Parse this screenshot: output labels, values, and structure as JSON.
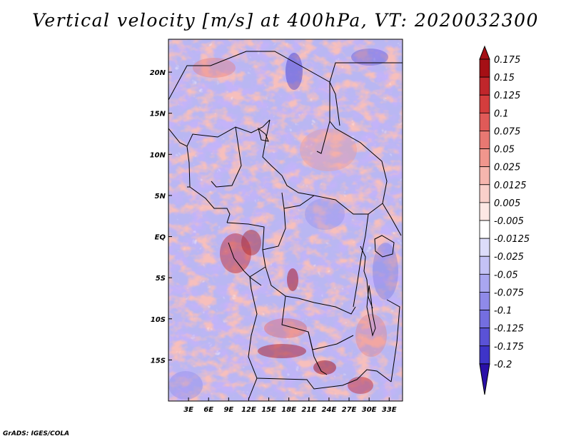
{
  "title": "Vertical velocity [m/s] at 400hPa, VT: 2020032300",
  "credit": "GrADS: IGES/COLA",
  "map": {
    "lon_range": [
      0,
      35
    ],
    "lat_range": [
      -20,
      24
    ],
    "lat_ticks": [
      {
        "value": 20,
        "label": "20N"
      },
      {
        "value": 15,
        "label": "15N"
      },
      {
        "value": 10,
        "label": "10N"
      },
      {
        "value": 5,
        "label": "5N"
      },
      {
        "value": 0,
        "label": "EQ"
      },
      {
        "value": -5,
        "label": "5S"
      },
      {
        "value": -10,
        "label": "10S"
      },
      {
        "value": -15,
        "label": "15S"
      }
    ],
    "lon_ticks": [
      {
        "value": 3,
        "label": "3E"
      },
      {
        "value": 6,
        "label": "6E"
      },
      {
        "value": 9,
        "label": "9E"
      },
      {
        "value": 12,
        "label": "12E"
      },
      {
        "value": 15,
        "label": "15E"
      },
      {
        "value": 18,
        "label": "18E"
      },
      {
        "value": 21,
        "label": "21E"
      },
      {
        "value": 24,
        "label": "24E"
      },
      {
        "value": 27,
        "label": "27E"
      },
      {
        "value": 30,
        "label": "30E"
      },
      {
        "value": 33,
        "label": "33E"
      }
    ]
  },
  "colorbar": [
    {
      "label": "0.175",
      "color": "#a50f15"
    },
    {
      "label": "0.15",
      "color": "#c0262b"
    },
    {
      "label": "0.125",
      "color": "#d43d3d"
    },
    {
      "label": "0.1",
      "color": "#e05a58"
    },
    {
      "label": "0.075",
      "color": "#e87872"
    },
    {
      "label": "0.05",
      "color": "#f0968d"
    },
    {
      "label": "0.025",
      "color": "#f6b6ae"
    },
    {
      "label": "0.0125",
      "color": "#f9d0ca"
    },
    {
      "label": "0.005",
      "color": "#fde8e4"
    },
    {
      "label": "-0.005",
      "color": "#ffffff"
    },
    {
      "label": "-0.0125",
      "color": "#dcdcfa"
    },
    {
      "label": "-0.025",
      "color": "#c4c2f6"
    },
    {
      "label": "-0.05",
      "color": "#a9a6f0"
    },
    {
      "label": "-0.075",
      "color": "#8f8ae9"
    },
    {
      "label": "-0.1",
      "color": "#746ee0"
    },
    {
      "label": "-0.125",
      "color": "#5a52d6"
    },
    {
      "label": "-0.175",
      "color": "#3e34c8"
    },
    {
      "label": "-0.2",
      "color": "#2a10a8"
    }
  ]
}
